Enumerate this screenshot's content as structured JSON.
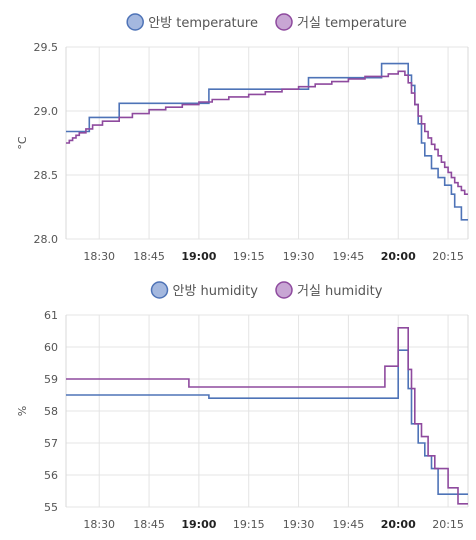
{
  "charts": [
    {
      "id": "temperature",
      "chart_data": {
        "type": "line",
        "step": true,
        "ylabel": "°C",
        "ylim": [
          28.0,
          29.5
        ],
        "yticks": [
          "29.5",
          "29.0",
          "28.5",
          "28.0"
        ],
        "xlim": [
          "18:20",
          "20:21"
        ],
        "xticks": [
          {
            "label": "18:30",
            "bold": false
          },
          {
            "label": "18:45",
            "bold": false
          },
          {
            "label": "19:00",
            "bold": true
          },
          {
            "label": "19:15",
            "bold": false
          },
          {
            "label": "19:30",
            "bold": false
          },
          {
            "label": "19:45",
            "bold": false
          },
          {
            "label": "20:00",
            "bold": true
          },
          {
            "label": "20:15",
            "bold": false
          }
        ],
        "legend_position": "top-center",
        "grid": true,
        "series": [
          {
            "name": "안방 temperature",
            "color": "#4e73b7",
            "fill": "#a4b8df",
            "points": [
              [
                "18:20",
                28.84
              ],
              [
                "18:27",
                28.95
              ],
              [
                "18:36",
                29.06
              ],
              [
                "19:03",
                29.17
              ],
              [
                "19:33",
                29.26
              ],
              [
                "19:55",
                29.37
              ],
              [
                "20:03",
                29.28
              ],
              [
                "20:04",
                29.2
              ],
              [
                "20:05",
                29.05
              ],
              [
                "20:06",
                28.9
              ],
              [
                "20:07",
                28.75
              ],
              [
                "20:08",
                28.65
              ],
              [
                "20:10",
                28.55
              ],
              [
                "20:12",
                28.48
              ],
              [
                "20:14",
                28.42
              ],
              [
                "20:16",
                28.35
              ],
              [
                "20:17",
                28.25
              ],
              [
                "20:19",
                28.15
              ],
              [
                "20:21",
                28.15
              ]
            ]
          },
          {
            "name": "거실 temperature",
            "color": "#8e4a9e",
            "fill": "#c8a6d4",
            "points": [
              [
                "18:20",
                28.75
              ],
              [
                "18:21",
                28.77
              ],
              [
                "18:22",
                28.79
              ],
              [
                "18:23",
                28.81
              ],
              [
                "18:24",
                28.83
              ],
              [
                "18:26",
                28.86
              ],
              [
                "18:28",
                28.89
              ],
              [
                "18:31",
                28.92
              ],
              [
                "18:36",
                28.95
              ],
              [
                "18:40",
                28.98
              ],
              [
                "18:45",
                29.01
              ],
              [
                "18:50",
                29.03
              ],
              [
                "18:55",
                29.05
              ],
              [
                "19:00",
                29.07
              ],
              [
                "19:04",
                29.09
              ],
              [
                "19:09",
                29.11
              ],
              [
                "19:15",
                29.13
              ],
              [
                "19:20",
                29.15
              ],
              [
                "19:25",
                29.17
              ],
              [
                "19:30",
                29.19
              ],
              [
                "19:35",
                29.21
              ],
              [
                "19:40",
                29.23
              ],
              [
                "19:45",
                29.25
              ],
              [
                "19:50",
                29.27
              ],
              [
                "19:57",
                29.29
              ],
              [
                "20:00",
                29.31
              ],
              [
                "20:02",
                29.28
              ],
              [
                "20:03",
                29.22
              ],
              [
                "20:04",
                29.14
              ],
              [
                "20:05",
                29.05
              ],
              [
                "20:06",
                28.96
              ],
              [
                "20:07",
                28.9
              ],
              [
                "20:08",
                28.84
              ],
              [
                "20:09",
                28.79
              ],
              [
                "20:10",
                28.74
              ],
              [
                "20:11",
                28.7
              ],
              [
                "20:12",
                28.65
              ],
              [
                "20:13",
                28.6
              ],
              [
                "20:14",
                28.56
              ],
              [
                "20:15",
                28.52
              ],
              [
                "20:16",
                28.48
              ],
              [
                "20:17",
                28.44
              ],
              [
                "20:18",
                28.41
              ],
              [
                "20:19",
                28.38
              ],
              [
                "20:20",
                28.35
              ],
              [
                "20:21",
                28.35
              ]
            ]
          }
        ]
      }
    },
    {
      "id": "humidity",
      "chart_data": {
        "type": "line",
        "step": true,
        "ylabel": "%",
        "ylim": [
          55,
          61
        ],
        "yticks": [
          "61",
          "60",
          "59",
          "58",
          "57",
          "56",
          "55"
        ],
        "xlim": [
          "18:20",
          "20:21"
        ],
        "xticks": [
          {
            "label": "18:30",
            "bold": false
          },
          {
            "label": "18:45",
            "bold": false
          },
          {
            "label": "19:00",
            "bold": true
          },
          {
            "label": "19:15",
            "bold": false
          },
          {
            "label": "19:30",
            "bold": false
          },
          {
            "label": "19:45",
            "bold": false
          },
          {
            "label": "20:00",
            "bold": true
          },
          {
            "label": "20:15",
            "bold": false
          }
        ],
        "legend_position": "top-center",
        "grid": true,
        "series": [
          {
            "name": "안방 humidity",
            "color": "#4e73b7",
            "fill": "#a4b8df",
            "points": [
              [
                "18:20",
                58.5
              ],
              [
                "19:03",
                58.4
              ],
              [
                "20:00",
                59.9
              ],
              [
                "20:03",
                58.7
              ],
              [
                "20:04",
                57.6
              ],
              [
                "20:06",
                57.0
              ],
              [
                "20:08",
                56.6
              ],
              [
                "20:10",
                56.2
              ],
              [
                "20:12",
                55.4
              ],
              [
                "20:21",
                55.4
              ]
            ]
          },
          {
            "name": "거실 humidity",
            "color": "#8e4a9e",
            "fill": "#c8a6d4",
            "points": [
              [
                "18:20",
                59.0
              ],
              [
                "18:57",
                58.75
              ],
              [
                "19:56",
                59.4
              ],
              [
                "20:00",
                60.6
              ],
              [
                "20:03",
                59.3
              ],
              [
                "20:04",
                58.7
              ],
              [
                "20:05",
                57.6
              ],
              [
                "20:07",
                57.2
              ],
              [
                "20:09",
                56.6
              ],
              [
                "20:11",
                56.2
              ],
              [
                "20:15",
                55.6
              ],
              [
                "20:18",
                55.1
              ],
              [
                "20:21",
                55.1
              ]
            ]
          }
        ]
      }
    }
  ]
}
